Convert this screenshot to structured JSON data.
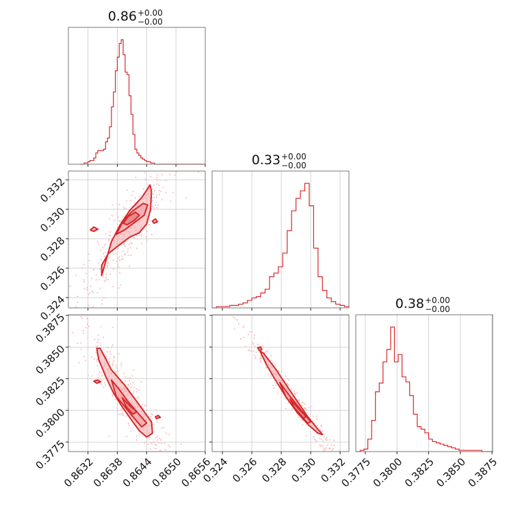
{
  "colors": {
    "series": "#d62728",
    "fill": "#f2a5a9",
    "scatter": "#f7c4c6",
    "grid": "#c8c8c8",
    "frame": "#777777"
  },
  "titles": {
    "p0": {
      "value": "0.86",
      "plus": "+0.00",
      "minus": "−0.00"
    },
    "p1": {
      "value": "0.33",
      "plus": "+0.00",
      "minus": "−0.00"
    },
    "p2": {
      "value": "0.38",
      "plus": "+0.00",
      "minus": "−0.00"
    }
  },
  "chart_data": {
    "type": "corner",
    "params": [
      {
        "name": "p0",
        "range": [
          0.8628,
          0.8656
        ],
        "ticks": [
          0.8632,
          0.8638,
          0.8644,
          0.865,
          0.8656
        ],
        "tick_labels": [
          "0.8632",
          "0.8638",
          "0.8644",
          "0.8650",
          "0.8656"
        ]
      },
      {
        "name": "p1",
        "range": [
          0.3233,
          0.3326
        ],
        "ticks": [
          0.324,
          0.326,
          0.328,
          0.33,
          0.332
        ],
        "tick_labels": [
          "0.324",
          "0.326",
          "0.328",
          "0.330",
          "0.332"
        ]
      },
      {
        "name": "p2",
        "range": [
          0.37675,
          0.38755
        ],
        "ticks": [
          0.3775,
          0.38,
          0.3825,
          0.385,
          0.3875
        ],
        "tick_labels": [
          "0.3775",
          "0.3800",
          "0.3825",
          "0.3850",
          "0.3875"
        ]
      }
    ],
    "histograms": [
      {
        "param": 0,
        "edges": [
          0.86304,
          0.86308,
          0.86312,
          0.86316,
          0.8632,
          0.86324,
          0.86328,
          0.86332,
          0.86336,
          0.8634,
          0.86344,
          0.86348,
          0.86352,
          0.86356,
          0.8636,
          0.86364,
          0.86368,
          0.86372,
          0.86376,
          0.8638,
          0.86384,
          0.86388,
          0.86392,
          0.86396,
          0.864,
          0.86404,
          0.86408,
          0.86412,
          0.86416,
          0.8642,
          0.86424,
          0.86428,
          0.86432,
          0.86436,
          0.8644,
          0.86444,
          0.86448,
          0.86452,
          0.86456,
          0.8646,
          0.86464,
          0.86468,
          0.86472,
          0.86476,
          0.8648,
          0.86484,
          0.86488,
          0.86492,
          0.86496,
          0.865,
          0.86504,
          0.86508,
          0.86512,
          0.86516,
          0.8652,
          0.86524,
          0.86528,
          0.86532,
          0.86536,
          0.8654,
          0.86544,
          0.86548,
          0.86552,
          0.86556,
          0.8656
        ],
        "counts": [
          0,
          0,
          1,
          1,
          2,
          3,
          3,
          5,
          9,
          11,
          11,
          11,
          12,
          18,
          21,
          30,
          46,
          58,
          75,
          86,
          97,
          100,
          88,
          74,
          72,
          55,
          40,
          24,
          12,
          9,
          7,
          5,
          4,
          3,
          2,
          2,
          1,
          1,
          0,
          0,
          0,
          0,
          0,
          0,
          0,
          0,
          0,
          0,
          0,
          0,
          0,
          0,
          0,
          0,
          0,
          0,
          0,
          0,
          0,
          0,
          0,
          0,
          0,
          0
        ]
      },
      {
        "param": 1,
        "edges": [
          0.3233,
          0.3236,
          0.3239,
          0.3242,
          0.3245,
          0.3248,
          0.3251,
          0.3254,
          0.3257,
          0.326,
          0.3263,
          0.3266,
          0.3269,
          0.3272,
          0.3275,
          0.3278,
          0.3281,
          0.3284,
          0.3287,
          0.329,
          0.3293,
          0.3296,
          0.3299,
          0.3302,
          0.3305,
          0.3308,
          0.3311,
          0.3314,
          0.3317,
          0.332,
          0.3323,
          0.3326
        ],
        "counts": [
          0,
          1,
          1,
          1,
          2,
          2,
          3,
          4,
          6,
          8,
          9,
          12,
          15,
          25,
          28,
          33,
          44,
          62,
          78,
          88,
          94,
          100,
          82,
          48,
          25,
          14,
          8,
          5,
          3,
          2,
          1
        ]
      },
      {
        "param": 2,
        "edges": [
          0.3768,
          0.3771,
          0.3774,
          0.3777,
          0.378,
          0.3783,
          0.3786,
          0.3789,
          0.3792,
          0.3795,
          0.3798,
          0.3801,
          0.3804,
          0.3807,
          0.381,
          0.3813,
          0.3816,
          0.3819,
          0.3822,
          0.3825,
          0.3828,
          0.3831,
          0.3834,
          0.3837,
          0.384,
          0.3843,
          0.3846,
          0.3849,
          0.3852,
          0.3855,
          0.3858,
          0.3861,
          0.3864,
          0.3867,
          0.387,
          0.3873,
          0.3876
        ],
        "counts": [
          0,
          1,
          2,
          10,
          25,
          48,
          55,
          72,
          82,
          100,
          72,
          78,
          60,
          56,
          45,
          30,
          20,
          18,
          15,
          10,
          8,
          7,
          6,
          5,
          4,
          3,
          2,
          1,
          1,
          1,
          1,
          1,
          1,
          0,
          0,
          0
        ]
      }
    ],
    "contours": [
      {
        "x": 0,
        "y": 1,
        "levels": [
          [
            [
              0.86348,
              0.3255
            ],
            [
              0.86368,
              0.3278
            ],
            [
              0.86385,
              0.3289
            ],
            [
              0.86405,
              0.3299
            ],
            [
              0.8643,
              0.3308
            ],
            [
              0.86447,
              0.33165
            ],
            [
              0.8645,
              0.3312
            ],
            [
              0.86448,
              0.33
            ],
            [
              0.8644,
              0.329
            ],
            [
              0.86425,
              0.3284
            ],
            [
              0.86405,
              0.3281
            ],
            [
              0.86385,
              0.3276
            ],
            [
              0.86362,
              0.327
            ],
            [
              0.86348,
              0.3262
            ]
          ],
          [
            [
              0.86378,
              0.3283
            ],
            [
              0.86392,
              0.3292
            ],
            [
              0.8641,
              0.32985
            ],
            [
              0.86433,
              0.3304
            ],
            [
              0.86442,
              0.3303
            ],
            [
              0.86435,
              0.3296
            ],
            [
              0.86415,
              0.3291
            ],
            [
              0.86395,
              0.3286
            ]
          ],
          [
            [
              0.86392,
              0.32905
            ],
            [
              0.86402,
              0.3295
            ],
            [
              0.86417,
              0.3298
            ],
            [
              0.86425,
              0.3296
            ],
            [
              0.86415,
              0.32925
            ],
            [
              0.864,
              0.32895
            ]
          ],
          [
            [
              0.86325,
              0.3286
            ],
            [
              0.86332,
              0.3288
            ],
            [
              0.8634,
              0.32865
            ],
            [
              0.86332,
              0.3285
            ]
          ],
          [
            [
              0.86452,
              0.3292
            ],
            [
              0.86458,
              0.32935
            ],
            [
              0.86462,
              0.32915
            ],
            [
              0.86455,
              0.32905
            ]
          ]
        ]
      },
      {
        "x": 0,
        "y": 2,
        "levels": [
          [
            [
              0.86338,
              0.3849
            ],
            [
              0.86345,
              0.3849
            ],
            [
              0.86368,
              0.3832
            ],
            [
              0.86395,
              0.382
            ],
            [
              0.86418,
              0.3808
            ],
            [
              0.86435,
              0.3799
            ],
            [
              0.8645,
              0.3791
            ],
            [
              0.86452,
              0.3782
            ],
            [
              0.8644,
              0.3779
            ],
            [
              0.86425,
              0.3784
            ],
            [
              0.86408,
              0.3793
            ],
            [
              0.86388,
              0.3804
            ],
            [
              0.86372,
              0.3814
            ],
            [
              0.86356,
              0.3827
            ],
            [
              0.86342,
              0.384
            ]
          ],
          [
            [
              0.86368,
              0.3824
            ],
            [
              0.86385,
              0.3816
            ],
            [
              0.86402,
              0.3807
            ],
            [
              0.86422,
              0.3798
            ],
            [
              0.8644,
              0.379
            ],
            [
              0.8643,
              0.3787
            ],
            [
              0.86412,
              0.3795
            ],
            [
              0.86395,
              0.3803
            ],
            [
              0.86378,
              0.3811
            ]
          ],
          [
            [
              0.8639,
              0.381
            ],
            [
              0.86405,
              0.3804
            ],
            [
              0.8642,
              0.3799
            ],
            [
              0.86412,
              0.3797
            ],
            [
              0.86398,
              0.3803
            ]
          ],
          [
            [
              0.86332,
              0.3823
            ],
            [
              0.8634,
              0.3824
            ],
            [
              0.86346,
              0.38225
            ],
            [
              0.86338,
              0.38215
            ]
          ],
          [
            [
              0.86458,
              0.3795
            ],
            [
              0.86464,
              0.3796
            ],
            [
              0.86468,
              0.37945
            ],
            [
              0.8646,
              0.37935
            ]
          ]
        ]
      },
      {
        "x": 1,
        "y": 2,
        "levels": [
          [
            [
              0.32655,
              0.3847
            ],
            [
              0.3268,
              0.3845
            ],
            [
              0.3276,
              0.3833
            ],
            [
              0.3284,
              0.3819
            ],
            [
              0.3291,
              0.3807
            ],
            [
              0.3298,
              0.3795
            ],
            [
              0.3305,
              0.3785
            ],
            [
              0.3308,
              0.3781
            ],
            [
              0.3305,
              0.3782
            ],
            [
              0.3299,
              0.3788
            ],
            [
              0.3291,
              0.3798
            ],
            [
              0.3283,
              0.3811
            ],
            [
              0.3276,
              0.3824
            ],
            [
              0.327,
              0.3836
            ]
          ],
          [
            [
              0.3279,
              0.3822
            ],
            [
              0.3286,
              0.3811
            ],
            [
              0.3293,
              0.3801
            ],
            [
              0.33,
              0.3791
            ],
            [
              0.3298,
              0.379
            ],
            [
              0.329,
              0.38
            ],
            [
              0.3283,
              0.3811
            ]
          ],
          [
            [
              0.3286,
              0.3809
            ],
            [
              0.3292,
              0.3801
            ],
            [
              0.3297,
              0.3795
            ],
            [
              0.3295,
              0.3794
            ],
            [
              0.3289,
              0.3802
            ]
          ],
          [
            [
              0.3264,
              0.38495
            ],
            [
              0.3266,
              0.385
            ],
            [
              0.32668,
              0.3848
            ],
            [
              0.3265,
              0.38475
            ]
          ]
        ]
      }
    ]
  }
}
